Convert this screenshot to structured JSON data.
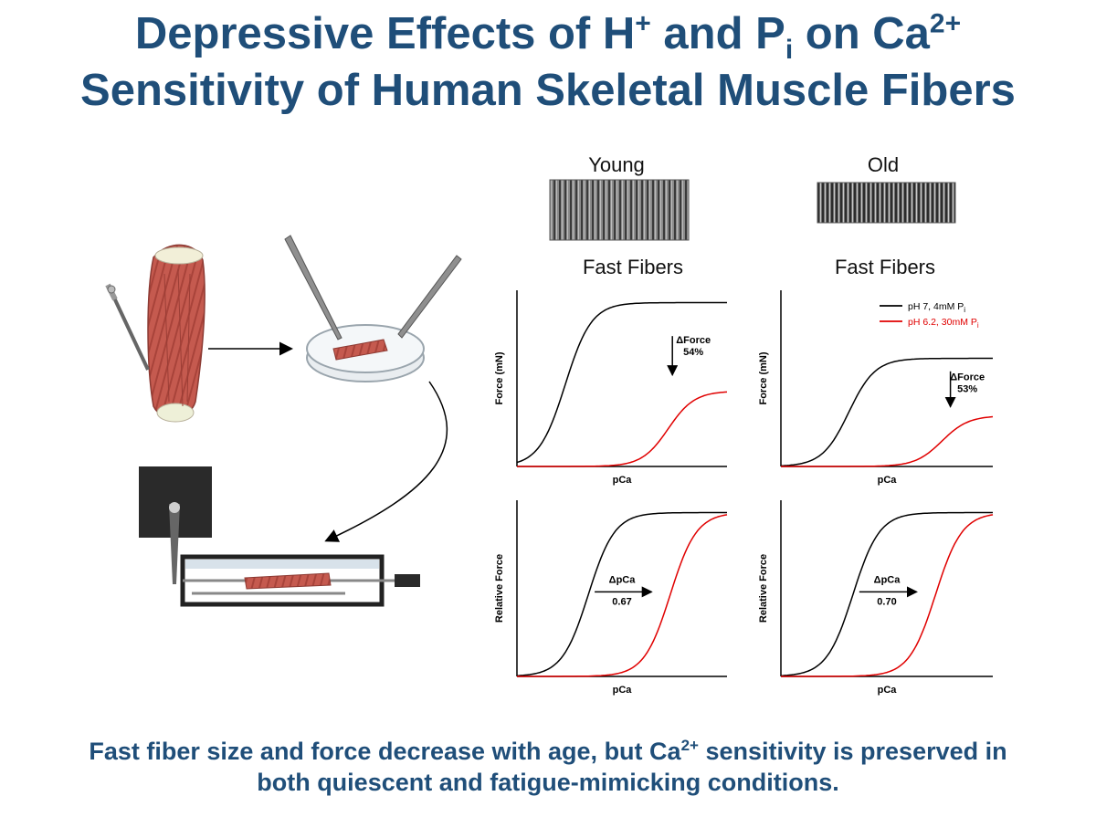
{
  "title": {
    "line1": {
      "a": "Depressive Effects of H",
      "sup_h": "+",
      "b": " and P",
      "sub_i": "i",
      "c": " on Ca",
      "sup_ca": "2+"
    },
    "line2": "Sensitivity of Human Skeletal Muscle Fibers"
  },
  "groups": {
    "young": {
      "label": "Young",
      "fiber_label": "Fast Fibers"
    },
    "old": {
      "label": "Old",
      "fiber_label": "Fast Fibers"
    }
  },
  "legend": {
    "control": {
      "text": "pH 7, 4mM P",
      "sub": "i",
      "color": "#000000"
    },
    "fatigue": {
      "text": "pH 6.2, 30mM P",
      "sub": "i",
      "color": "#e00000"
    }
  },
  "chart_data": [
    {
      "type": "line",
      "panel": "young-absolute",
      "xlabel": "pCa",
      "ylabel": "Force (mN)",
      "annotation": {
        "label": "ΔForce",
        "value": "54%"
      },
      "series": [
        {
          "plateau": 1.0,
          "midpoint": 0.23
        },
        {
          "plateau": 0.46,
          "midpoint": 0.72
        }
      ]
    },
    {
      "type": "line",
      "panel": "old-absolute",
      "xlabel": "pCa",
      "ylabel": "Force (mN)",
      "annotation": {
        "label": "ΔForce",
        "value": "53%"
      },
      "series": [
        {
          "plateau": 0.66,
          "midpoint": 0.32
        },
        {
          "plateau": 0.31,
          "midpoint": 0.76
        }
      ]
    },
    {
      "type": "line",
      "panel": "young-relative",
      "xlabel": "pCa",
      "ylabel": "Relative Force",
      "annotation": {
        "label": "ΔpCa",
        "value": "0.67"
      },
      "series": [
        {
          "plateau": 1.0,
          "midpoint": 0.34
        },
        {
          "plateau": 1.0,
          "midpoint": 0.73
        }
      ]
    },
    {
      "type": "line",
      "panel": "old-relative",
      "xlabel": "pCa",
      "ylabel": "Relative Force",
      "annotation": {
        "label": "ΔpCa",
        "value": "0.70"
      },
      "series": [
        {
          "plateau": 1.0,
          "midpoint": 0.34
        },
        {
          "plateau": 1.0,
          "midpoint": 0.73
        }
      ]
    }
  ],
  "colors": {
    "title": "#1f4e79",
    "control": "#000000",
    "fatigue": "#e00000",
    "muscle": "#c0544c"
  },
  "footer": {
    "a": "Fast fiber size and force decrease with age, but Ca",
    "sup": "2+",
    "b": " sensitivity is preserved in",
    "line2": "both quiescent and fatigue-mimicking conditions."
  }
}
